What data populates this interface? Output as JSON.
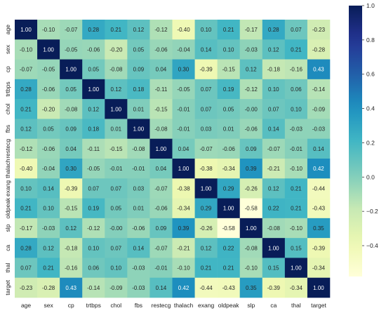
{
  "chart_data": {
    "type": "heatmap",
    "title": "",
    "xlabel": "",
    "ylabel": "",
    "labels": [
      "age",
      "sex",
      "cp",
      "trtbps",
      "chol",
      "fbs",
      "restecg",
      "thalach",
      "exang",
      "oldpeak",
      "slp",
      "ca",
      "thal",
      "target"
    ],
    "matrix": [
      [
        1.0,
        -0.1,
        -0.07,
        0.28,
        0.21,
        0.12,
        -0.12,
        -0.4,
        0.1,
        0.21,
        -0.17,
        0.28,
        0.07,
        -0.23
      ],
      [
        -0.1,
        1.0,
        -0.05,
        -0.06,
        -0.2,
        0.05,
        -0.06,
        -0.04,
        0.14,
        0.1,
        -0.03,
        0.12,
        0.21,
        -0.28
      ],
      [
        -0.07,
        -0.05,
        1.0,
        0.05,
        -0.08,
        0.09,
        0.04,
        0.3,
        -0.39,
        -0.15,
        0.12,
        -0.18,
        -0.16,
        0.43
      ],
      [
        0.28,
        -0.06,
        0.05,
        1.0,
        0.12,
        0.18,
        -0.11,
        -0.05,
        0.07,
        0.19,
        -0.12,
        0.1,
        0.06,
        -0.14
      ],
      [
        0.21,
        -0.2,
        -0.08,
        0.12,
        1.0,
        0.01,
        -0.15,
        -0.01,
        0.07,
        0.05,
        -0.0,
        0.07,
        0.1,
        -0.09
      ],
      [
        0.12,
        0.05,
        0.09,
        0.18,
        0.01,
        1.0,
        -0.08,
        -0.01,
        0.03,
        0.01,
        -0.06,
        0.14,
        -0.03,
        -0.03
      ],
      [
        -0.12,
        -0.06,
        0.04,
        -0.11,
        -0.15,
        -0.08,
        1.0,
        0.04,
        -0.07,
        -0.06,
        0.09,
        -0.07,
        -0.01,
        0.14
      ],
      [
        -0.4,
        -0.04,
        0.3,
        -0.05,
        -0.01,
        -0.01,
        0.04,
        1.0,
        -0.38,
        -0.34,
        0.39,
        -0.21,
        -0.1,
        0.42
      ],
      [
        0.1,
        0.14,
        -0.39,
        0.07,
        0.07,
        0.03,
        -0.07,
        -0.38,
        1.0,
        0.29,
        -0.26,
        0.12,
        0.21,
        -0.44
      ],
      [
        0.21,
        0.1,
        -0.15,
        0.19,
        0.05,
        0.01,
        -0.06,
        -0.34,
        0.29,
        1.0,
        -0.58,
        0.22,
        0.21,
        -0.43
      ],
      [
        -0.17,
        -0.03,
        0.12,
        -0.12,
        -0.0,
        -0.06,
        0.09,
        0.39,
        -0.26,
        -0.58,
        1.0,
        -0.08,
        -0.1,
        0.35
      ],
      [
        0.28,
        0.12,
        -0.18,
        0.1,
        0.07,
        0.14,
        -0.07,
        -0.21,
        0.12,
        0.22,
        -0.08,
        1.0,
        0.15,
        -0.39
      ],
      [
        0.07,
        0.21,
        -0.16,
        0.06,
        0.1,
        -0.03,
        -0.01,
        -0.1,
        0.21,
        0.21,
        -0.1,
        0.15,
        1.0,
        -0.34
      ],
      [
        -0.23,
        -0.28,
        0.43,
        -0.14,
        -0.09,
        -0.03,
        0.14,
        0.42,
        -0.44,
        -0.43,
        0.35,
        -0.39,
        -0.34,
        1.0
      ]
    ],
    "colorscale": "YlGnBu",
    "vmin": -0.58,
    "vmax": 1.0,
    "colorbar_ticks": [
      1.0,
      0.8,
      0.6,
      0.4,
      0.2,
      0.0,
      -0.2,
      -0.4
    ],
    "colorbar_labels": [
      "1.0",
      "0.8",
      "0.6",
      "0.4",
      "0.2",
      "0.0",
      "−0.2",
      "−0.4"
    ],
    "annotation_format": "2f",
    "legend": "colorbar-right"
  }
}
